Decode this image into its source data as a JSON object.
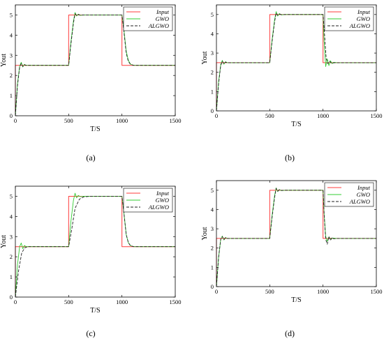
{
  "figure": {
    "panels": [
      {
        "caption": "(a)"
      },
      {
        "caption": "(b)"
      },
      {
        "caption": "(c)"
      },
      {
        "caption": "(d)"
      }
    ]
  },
  "colors": {
    "input": "#ff3b3b",
    "gwo": "#33cc33",
    "algwo": "#1f1f1f"
  },
  "chart_data": [
    {
      "type": "line",
      "xlabel": "T/S",
      "ylabel": "Yout",
      "xlim": [
        0,
        1500
      ],
      "ylim": [
        0,
        5.5
      ],
      "xticks": [
        0,
        500,
        1000,
        1500
      ],
      "yticks": [
        0,
        1,
        2,
        3,
        4,
        5
      ],
      "legend_position": "top-right",
      "series": [
        {
          "name": "Input",
          "style": "solid",
          "x": [
            0,
            0,
            500,
            500,
            1000,
            1000,
            1500
          ],
          "y": [
            0,
            2.5,
            2.5,
            5,
            5,
            2.5,
            2.5
          ]
        },
        {
          "name": "GWO",
          "style": "solid",
          "x": [
            0,
            20,
            40,
            55,
            70,
            85,
            100,
            130,
            500,
            520,
            545,
            560,
            575,
            590,
            610,
            640,
            1000,
            1020,
            1040,
            1060,
            1080,
            1110,
            1500
          ],
          "y": [
            0,
            1.6,
            2.45,
            2.65,
            2.42,
            2.55,
            2.5,
            2.5,
            2.5,
            3.6,
            4.7,
            5.12,
            4.95,
            5.04,
            4.98,
            5,
            5,
            4.2,
            3.2,
            2.75,
            2.56,
            2.5,
            2.5
          ]
        },
        {
          "name": "ALGWO",
          "style": "dashed",
          "x": [
            0,
            20,
            40,
            55,
            70,
            85,
            100,
            130,
            500,
            520,
            545,
            560,
            575,
            590,
            610,
            640,
            1000,
            1020,
            1040,
            1060,
            1080,
            1110,
            1500
          ],
          "y": [
            0,
            1.5,
            2.4,
            2.6,
            2.44,
            2.53,
            2.5,
            2.5,
            2.5,
            3.5,
            4.6,
            5.06,
            4.97,
            5.02,
            4.99,
            5,
            5,
            4.1,
            3.1,
            2.7,
            2.55,
            2.5,
            2.5
          ]
        }
      ]
    },
    {
      "type": "line",
      "xlabel": "T/S",
      "ylabel": "Yout",
      "xlim": [
        0,
        1500
      ],
      "ylim": [
        0,
        5.5
      ],
      "xticks": [
        0,
        500,
        1000,
        1500
      ],
      "yticks": [
        0,
        1,
        2,
        3,
        4,
        5
      ],
      "legend_position": "top-right",
      "series": [
        {
          "name": "Input",
          "style": "solid",
          "x": [
            0,
            0,
            500,
            500,
            1000,
            1000,
            1500
          ],
          "y": [
            0,
            2.5,
            2.5,
            5,
            5,
            2.5,
            2.5
          ]
        },
        {
          "name": "GWO",
          "style": "solid",
          "x": [
            0,
            20,
            40,
            55,
            70,
            85,
            100,
            130,
            500,
            520,
            545,
            560,
            575,
            590,
            610,
            640,
            1000,
            1010,
            1025,
            1040,
            1055,
            1070,
            1085,
            1100,
            1130,
            1500
          ],
          "y": [
            0,
            1.5,
            2.4,
            2.62,
            2.42,
            2.55,
            2.5,
            2.5,
            2.5,
            3.6,
            4.7,
            5.15,
            4.92,
            5.05,
            4.98,
            5,
            5,
            3.6,
            2.3,
            2.7,
            2.35,
            2.6,
            2.45,
            2.52,
            2.5,
            2.5
          ]
        },
        {
          "name": "ALGWO",
          "style": "dashed",
          "x": [
            0,
            20,
            40,
            55,
            70,
            85,
            100,
            130,
            500,
            520,
            545,
            560,
            575,
            590,
            610,
            640,
            1000,
            1015,
            1030,
            1045,
            1060,
            1080,
            1110,
            1500
          ],
          "y": [
            0,
            1.4,
            2.35,
            2.58,
            2.44,
            2.53,
            2.5,
            2.5,
            2.5,
            3.5,
            4.6,
            5.08,
            4.96,
            5.02,
            4.99,
            5,
            5,
            3.9,
            2.7,
            2.45,
            2.58,
            2.48,
            2.5,
            2.5
          ]
        }
      ]
    },
    {
      "type": "line",
      "xlabel": "T/S",
      "ylabel": "Yout",
      "xlim": [
        0,
        1500
      ],
      "ylim": [
        0,
        5.5
      ],
      "xticks": [
        0,
        500,
        1000,
        1500
      ],
      "yticks": [
        0,
        1,
        2,
        3,
        4,
        5
      ],
      "legend_position": "top-right",
      "series": [
        {
          "name": "Input",
          "style": "solid",
          "x": [
            0,
            0,
            500,
            500,
            1000,
            1000,
            1500
          ],
          "y": [
            0,
            2.5,
            2.5,
            5,
            5,
            2.5,
            2.5
          ]
        },
        {
          "name": "GWO",
          "style": "solid",
          "x": [
            0,
            20,
            40,
            55,
            70,
            85,
            100,
            130,
            500,
            520,
            545,
            560,
            575,
            590,
            610,
            640,
            1000,
            1020,
            1040,
            1060,
            1080,
            1110,
            1500
          ],
          "y": [
            0,
            1.6,
            2.5,
            2.68,
            2.4,
            2.56,
            2.5,
            2.5,
            2.5,
            3.7,
            4.8,
            5.15,
            4.92,
            5.04,
            4.98,
            5,
            5,
            4.1,
            3.1,
            2.7,
            2.55,
            2.5,
            2.5
          ]
        },
        {
          "name": "ALGWO",
          "style": "dashed",
          "x": [
            0,
            30,
            60,
            90,
            120,
            160,
            500,
            530,
            560,
            600,
            640,
            700,
            1000,
            1020,
            1040,
            1060,
            1080,
            1110,
            1500
          ],
          "y": [
            0,
            1.3,
            2.2,
            2.45,
            2.5,
            2.5,
            2.5,
            3.4,
            4.4,
            4.85,
            4.97,
            5,
            5,
            4.1,
            3.1,
            2.7,
            2.55,
            2.5,
            2.5
          ]
        }
      ]
    },
    {
      "type": "line",
      "xlabel": "T/S",
      "ylabel": "Yout",
      "xlim": [
        0,
        1500
      ],
      "ylim": [
        0,
        5.5
      ],
      "xticks": [
        0,
        500,
        1000,
        1500
      ],
      "yticks": [
        0,
        1,
        2,
        3,
        4,
        5
      ],
      "legend_position": "top-right",
      "series": [
        {
          "name": "Input",
          "style": "solid",
          "x": [
            0,
            0,
            500,
            500,
            1000,
            1000,
            1500
          ],
          "y": [
            0,
            2.5,
            2.5,
            5,
            5,
            2.5,
            2.5
          ]
        },
        {
          "name": "GWO",
          "style": "solid",
          "x": [
            0,
            20,
            40,
            55,
            70,
            85,
            100,
            130,
            500,
            520,
            545,
            560,
            575,
            590,
            610,
            640,
            1000,
            1010,
            1025,
            1040,
            1055,
            1070,
            1090,
            1120,
            1500
          ],
          "y": [
            0,
            1.5,
            2.45,
            2.62,
            2.42,
            2.55,
            2.5,
            2.5,
            2.5,
            3.6,
            4.7,
            5.12,
            4.93,
            5.04,
            4.98,
            5,
            5,
            3.8,
            2.6,
            2.35,
            2.58,
            2.46,
            2.52,
            2.5,
            2.5
          ]
        },
        {
          "name": "ALGWO",
          "style": "dashed",
          "x": [
            0,
            20,
            40,
            55,
            70,
            85,
            100,
            130,
            500,
            520,
            545,
            560,
            575,
            590,
            610,
            640,
            1000,
            1012,
            1025,
            1040,
            1055,
            1070,
            1085,
            1100,
            1130,
            1500
          ],
          "y": [
            0,
            1.5,
            2.45,
            2.6,
            2.43,
            2.54,
            2.5,
            2.5,
            2.5,
            3.5,
            4.6,
            5.1,
            4.95,
            5.03,
            4.99,
            5,
            5,
            3.6,
            2.45,
            2.2,
            2.6,
            2.4,
            2.55,
            2.48,
            2.5,
            2.5
          ]
        }
      ]
    }
  ]
}
